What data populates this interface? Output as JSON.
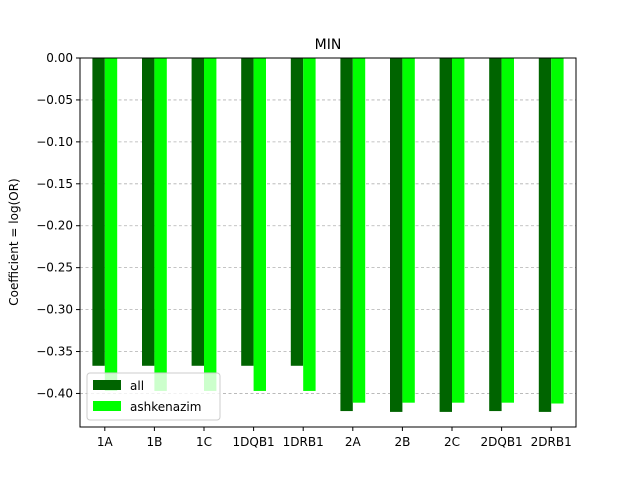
{
  "chart_data": {
    "type": "bar",
    "title": "MIN",
    "xlabel": "",
    "ylabel": "Coefficient = log(OR)",
    "categories": [
      "1A",
      "1B",
      "1C",
      "1DQB1",
      "1DRB1",
      "2A",
      "2B",
      "2C",
      "2DQB1",
      "2DRB1"
    ],
    "series": [
      {
        "name": "all",
        "color": "#006400",
        "values": [
          -0.367,
          -0.367,
          -0.367,
          -0.367,
          -0.367,
          -0.421,
          -0.422,
          -0.422,
          -0.421,
          -0.422
        ]
      },
      {
        "name": "ashkenazim",
        "color": "#00ff00",
        "values": [
          -0.397,
          -0.397,
          -0.397,
          -0.397,
          -0.397,
          -0.411,
          -0.411,
          -0.411,
          -0.411,
          -0.412
        ]
      }
    ],
    "ylim": [
      -0.44,
      0.0
    ],
    "yticks": [
      "0.00",
      "−0.05",
      "−0.10",
      "−0.15",
      "−0.20",
      "−0.25",
      "−0.30",
      "−0.35",
      "−0.40"
    ],
    "grid": "y-dashed",
    "legend_position": "lower-left"
  }
}
